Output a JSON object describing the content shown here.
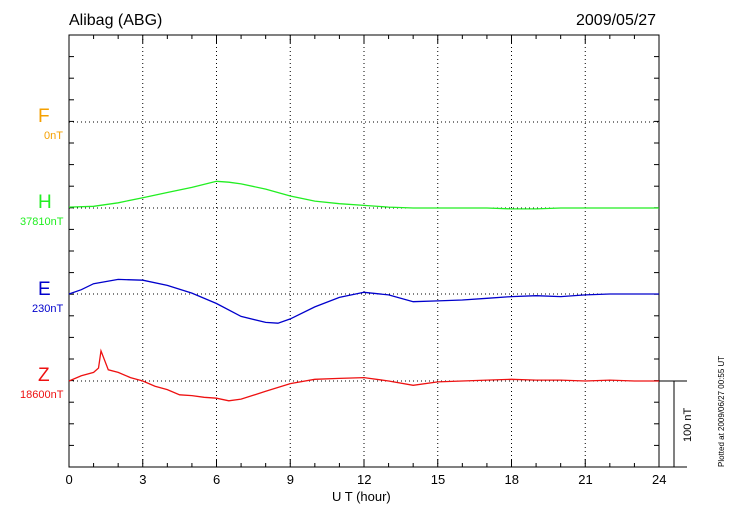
{
  "station": "Alibag (ABG)",
  "date": "2009/05/27",
  "plotted_at": "Plotted at 2009/06/27 00:55 UT",
  "scale_label": "100 nT",
  "chart_data": {
    "type": "line",
    "xlabel": "U T (hour)",
    "xlim": [
      0,
      24
    ],
    "xticks": [
      "0",
      "3",
      "6",
      "9",
      "12",
      "15",
      "18",
      "21",
      "24"
    ],
    "grid": true,
    "scale_nT": 100,
    "series": [
      {
        "name": "F",
        "baseline": "0nT",
        "color": "#f5a000",
        "values": []
      },
      {
        "name": "H",
        "baseline": "37810nT",
        "color": "#22ee22",
        "x": [
          0,
          1,
          2,
          3,
          4,
          5,
          6,
          6.5,
          7,
          8,
          9,
          10,
          11,
          12,
          13,
          14,
          15,
          16,
          17,
          18,
          19,
          20,
          21,
          22,
          23,
          24
        ],
        "values": [
          1,
          2,
          6,
          12,
          18,
          24,
          31,
          30,
          28,
          22,
          14,
          8,
          5,
          3,
          1,
          0,
          0,
          0,
          0,
          -1,
          -1,
          0,
          0,
          0,
          0,
          0
        ]
      },
      {
        "name": "E",
        "baseline": "230nT",
        "color": "#0000cc",
        "x": [
          0,
          0.5,
          1,
          2,
          3,
          4,
          5,
          6,
          7,
          8,
          8.5,
          9,
          10,
          11,
          12,
          13,
          14,
          15,
          16,
          17,
          18,
          19,
          20,
          21,
          22,
          23,
          24
        ],
        "values": [
          0,
          5,
          12,
          17,
          16,
          10,
          1,
          -11,
          -26,
          -33,
          -34,
          -29,
          -15,
          -4,
          2,
          -1,
          -9,
          -8,
          -7,
          -5,
          -3,
          -2,
          -3,
          -1,
          0,
          0,
          0
        ]
      },
      {
        "name": "Z",
        "baseline": "18600nT",
        "color": "#ee1111",
        "x": [
          0,
          0.5,
          1,
          1.2,
          1.3,
          1.6,
          2,
          2.5,
          3,
          3.5,
          4,
          4.5,
          5,
          5.5,
          6,
          6.5,
          7,
          8,
          9,
          10,
          11,
          12,
          13,
          14,
          15,
          16,
          17,
          18,
          19,
          20,
          21,
          22,
          23,
          24
        ],
        "values": [
          0,
          6,
          10,
          15,
          35,
          13,
          10,
          4,
          0,
          -6,
          -10,
          -16,
          -17,
          -19,
          -20,
          -23,
          -21,
          -12,
          -3,
          2,
          3,
          4,
          0,
          -5,
          -1,
          0,
          1,
          2,
          1,
          1,
          0,
          1,
          0,
          0
        ]
      }
    ]
  }
}
